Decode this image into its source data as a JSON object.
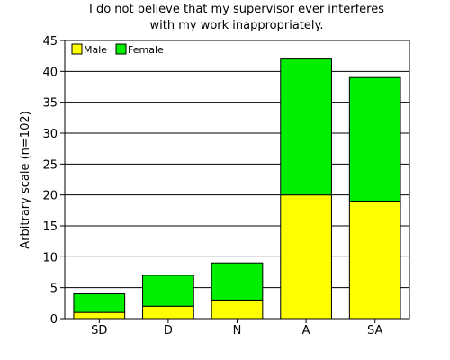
{
  "chart_data": {
    "type": "bar",
    "stacked": true,
    "title_lines": [
      "I do not believe that my supervisor ever interferes",
      "with my work inappropriately."
    ],
    "xlabel": "",
    "ylabel": "Arbitrary scale (n=102)",
    "categories": [
      "SD",
      "D",
      "N",
      "A",
      "SA"
    ],
    "series": [
      {
        "name": "Male",
        "color": "#ffff00",
        "values": [
          1,
          2,
          3,
          20,
          19
        ]
      },
      {
        "name": "Female",
        "color": "#00ee00",
        "values": [
          3,
          5,
          6,
          22,
          20
        ]
      }
    ],
    "ylim": [
      0,
      45
    ],
    "yticks": [
      0,
      5,
      10,
      15,
      20,
      25,
      30,
      35,
      40,
      45
    ],
    "grid": true,
    "legend": "top-left"
  }
}
